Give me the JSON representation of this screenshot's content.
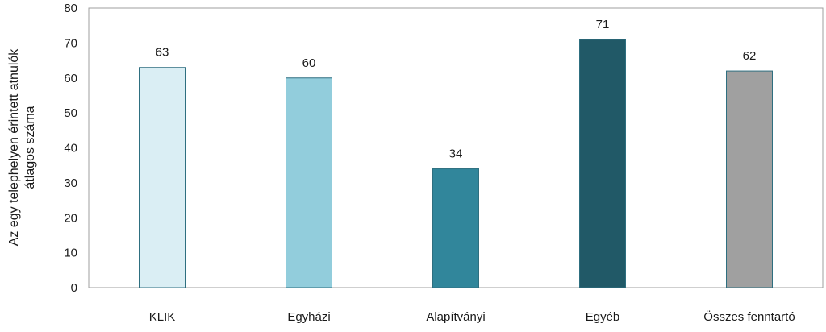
{
  "chart_data": {
    "type": "bar",
    "categories": [
      "KLIK",
      "Egyházi",
      "Alapítványi",
      "Egyéb",
      "Összes fenntartó"
    ],
    "values": [
      63,
      60,
      34,
      71,
      62
    ],
    "data_labels": [
      "63",
      "60",
      "34",
      "71",
      "62"
    ],
    "ylabel_lines": [
      "Az egy telephelyen érintett atnulók",
      "átlagos száma"
    ],
    "ylim": [
      0,
      80
    ],
    "yticks": [
      0,
      10,
      20,
      30,
      40,
      50,
      60,
      70,
      80
    ],
    "bar_colors": [
      "#daeef4",
      "#92cddc",
      "#31869b",
      "#215967",
      "#a0a0a0"
    ],
    "bar_stroke": "#2e6f80",
    "axis_color": "#9f9f9f",
    "grid": false,
    "legend": "none"
  }
}
